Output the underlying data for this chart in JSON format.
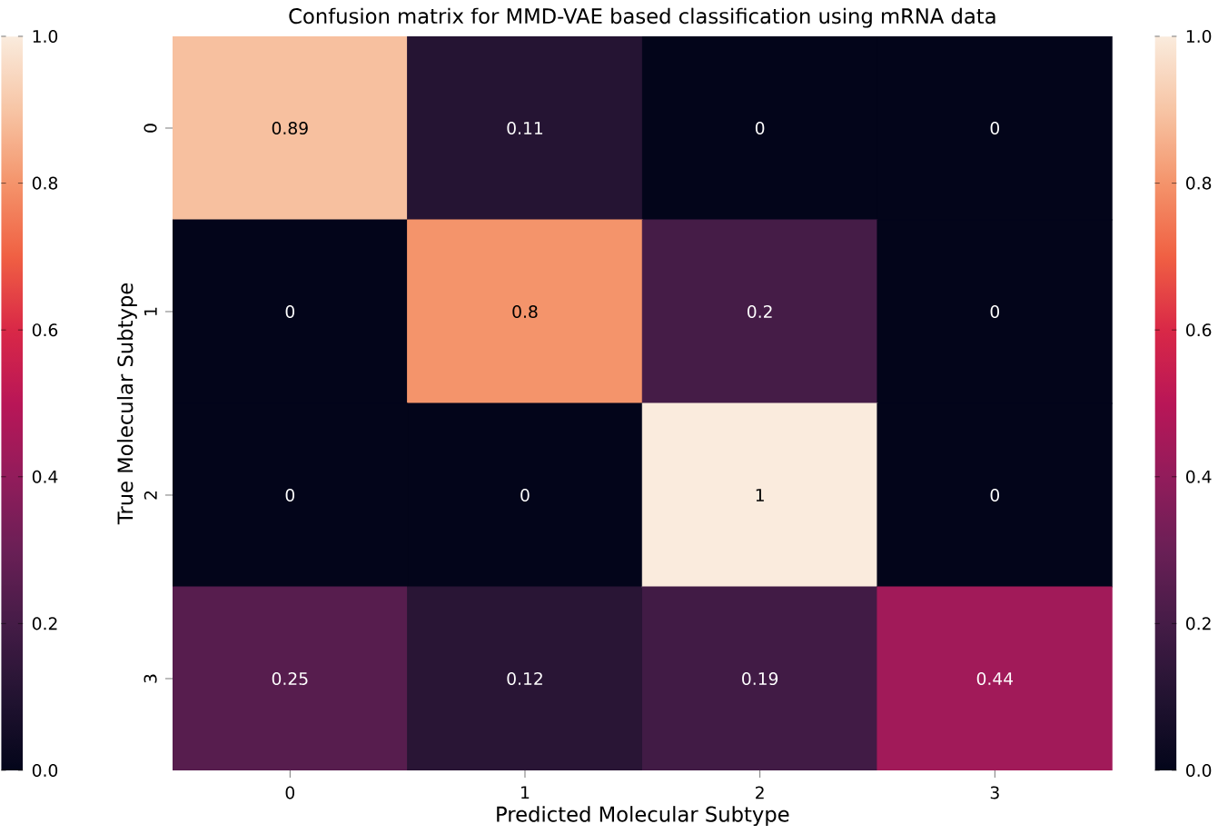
{
  "chart_data": {
    "type": "heatmap",
    "title": "Confusion matrix for MMD-VAE based classification using mRNA data",
    "xlabel": "Predicted Molecular Subtype",
    "ylabel": "True Molecular Subtype",
    "categories": [
      "0",
      "1",
      "2",
      "3"
    ],
    "y_categories": [
      "0",
      "1",
      "2",
      "3"
    ],
    "cells": [
      [
        0.89,
        0.11,
        0,
        0
      ],
      [
        0,
        0.8,
        0.2,
        0
      ],
      [
        0,
        0,
        1,
        0
      ],
      [
        0.25,
        0.12,
        0.19,
        0.44
      ]
    ],
    "data_labels": true,
    "clim": [
      0,
      1
    ],
    "cticks": [
      {
        "value": 0,
        "label": "0.0"
      },
      {
        "value": 0.2,
        "label": "0.2"
      },
      {
        "value": 0.4,
        "label": "0.4"
      },
      {
        "value": 0.6,
        "label": "0.6"
      },
      {
        "value": 0.8,
        "label": "0.8"
      },
      {
        "value": 1,
        "label": "1.0"
      }
    ]
  }
}
